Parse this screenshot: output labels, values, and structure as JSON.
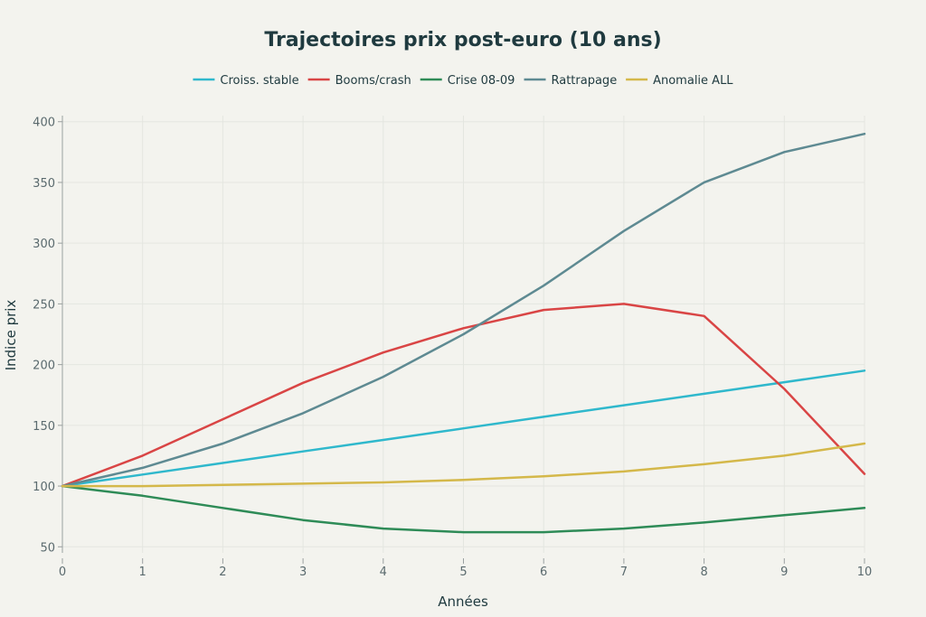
{
  "chart_data": {
    "type": "line",
    "title": "Trajectoires prix post-euro (10 ans)",
    "xlabel": "Années",
    "ylabel": "Indice prix",
    "x": [
      0,
      1,
      2,
      3,
      4,
      5,
      6,
      7,
      8,
      9,
      10
    ],
    "xlim": [
      0,
      10
    ],
    "ylim": [
      45,
      405
    ],
    "xticks": [
      0,
      1,
      2,
      3,
      4,
      5,
      6,
      7,
      8,
      9,
      10
    ],
    "yticks": [
      50,
      100,
      150,
      200,
      250,
      300,
      350,
      400
    ],
    "grid": true,
    "legend_position": "top-center",
    "series": [
      {
        "name": "Croiss. stable",
        "color": "#2fb8cc",
        "values": [
          100,
          109.5,
          119,
          128.5,
          138,
          147.5,
          157,
          166.5,
          176,
          185.5,
          195
        ]
      },
      {
        "name": "Booms/crash",
        "color": "#d94545",
        "values": [
          100,
          125,
          155,
          185,
          210,
          230,
          245,
          250,
          240,
          180,
          110
        ]
      },
      {
        "name": "Crise 08-09",
        "color": "#2e8b57",
        "values": [
          100,
          92,
          82,
          72,
          65,
          62,
          62,
          65,
          70,
          76,
          82
        ]
      },
      {
        "name": "Rattrapage",
        "color": "#5e8a92",
        "values": [
          100,
          115,
          135,
          160,
          190,
          225,
          265,
          310,
          350,
          375,
          390
        ]
      },
      {
        "name": "Anomalie ALL",
        "color": "#d4b84a",
        "values": [
          100,
          100,
          101,
          102,
          103,
          105,
          108,
          112,
          118,
          125,
          135
        ]
      }
    ]
  }
}
